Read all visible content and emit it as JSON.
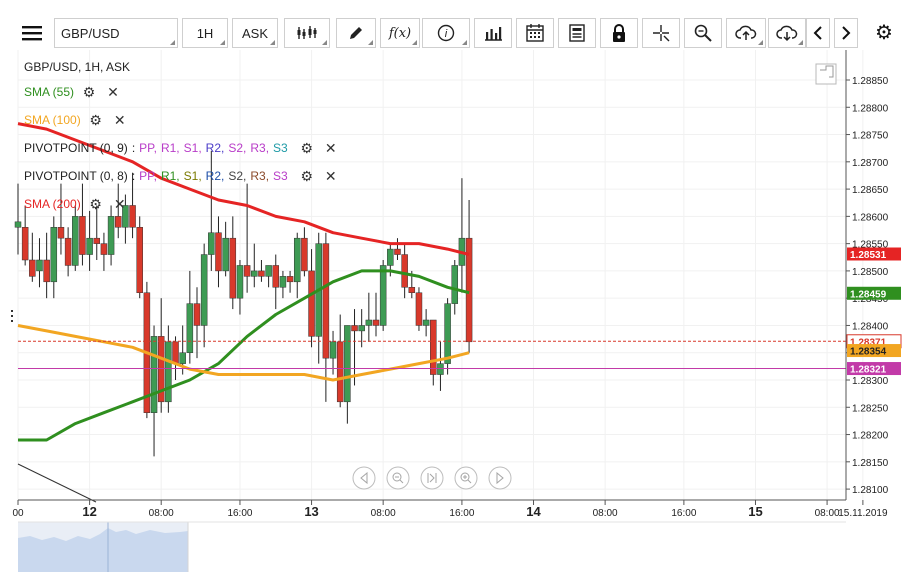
{
  "toolbar": {
    "symbol": "GBP/USD",
    "timeframe": "1H",
    "price_type": "ASK",
    "fx_label": "f(x)"
  },
  "legend": {
    "title": "GBP/USD, 1H, ASK",
    "sma55": "SMA (55)",
    "sma100": "SMA (100)",
    "sma200": "SMA (200)",
    "pivot1_name": "PIVOTPOINT (0, 9)",
    "pivot2_name": "PIVOTPOINT (0, 8)",
    "pivot_prefix": ":",
    "pivot_items": [
      "PP,",
      "R1,",
      "S1,",
      "R2,",
      "S2,",
      "R3,",
      "S3"
    ]
  },
  "colors": {
    "bull": "#3e9b54",
    "bear": "#d8392b",
    "sma55": "#2f8f1f",
    "sma100": "#f2a622",
    "sma200": "#e52424",
    "current": "#d8392b",
    "pivot_line": "#c23aa8",
    "pivot1": [
      "#b83cc8",
      "#b83cc8",
      "#b83cc8",
      "#4b3cc8",
      "#b83cc8",
      "#b83cc8",
      "#1e9aa6"
    ],
    "pivot2": [
      "#b83cc8",
      "#2f8f1f",
      "#7a7a00",
      "#1e4fa8",
      "#444444",
      "#8a4a2a",
      "#b83cc8"
    ]
  },
  "chart_data": {
    "type": "candlestick",
    "symbol": "GBP/USD",
    "timeframe": "1H",
    "y_range": [
      1.2808,
      1.28905
    ],
    "y_ticks": [
      1.281,
      1.2815,
      1.282,
      1.2825,
      1.283,
      1.2835,
      1.284,
      1.2845,
      1.285,
      1.2855,
      1.286,
      1.2865,
      1.287,
      1.2875,
      1.288,
      1.2885
    ],
    "x_ticks": [
      {
        "t": 0,
        "label": "00",
        "major": false
      },
      {
        "t": 10,
        "label": "12",
        "major": true
      },
      {
        "t": 20,
        "label": "08:00",
        "major": false
      },
      {
        "t": 31,
        "label": "16:00",
        "major": false
      },
      {
        "t": 41,
        "label": "13",
        "major": true
      },
      {
        "t": 51,
        "label": "08:00",
        "major": false
      },
      {
        "t": 62,
        "label": "16:00",
        "major": false
      },
      {
        "t": 72,
        "label": "14",
        "major": true
      },
      {
        "t": 82,
        "label": "08:00",
        "major": false
      },
      {
        "t": 93,
        "label": "16:00",
        "major": false
      },
      {
        "t": 103,
        "label": "15",
        "major": true
      },
      {
        "t": 113,
        "label": "08:00",
        "major": false
      },
      {
        "t": 118,
        "label": "15.11.2019",
        "major": false
      }
    ],
    "candles": [
      [
        0,
        1.2858,
        1.2866,
        1.2853,
        1.2859
      ],
      [
        1,
        1.2858,
        1.2862,
        1.2851,
        1.2852
      ],
      [
        2,
        1.2852,
        1.2857,
        1.2848,
        1.2849
      ],
      [
        3,
        1.285,
        1.2856,
        1.2847,
        1.2852
      ],
      [
        4,
        1.2852,
        1.2857,
        1.2845,
        1.2848
      ],
      [
        5,
        1.2848,
        1.286,
        1.2845,
        1.2858
      ],
      [
        6,
        1.2858,
        1.2866,
        1.2853,
        1.2856
      ],
      [
        7,
        1.2856,
        1.2858,
        1.2849,
        1.2851
      ],
      [
        8,
        1.2851,
        1.2862,
        1.285,
        1.286
      ],
      [
        9,
        1.286,
        1.2866,
        1.2851,
        1.2853
      ],
      [
        10,
        1.2853,
        1.2861,
        1.285,
        1.2856
      ],
      [
        11,
        1.2856,
        1.2862,
        1.2852,
        1.2855
      ],
      [
        12,
        1.2855,
        1.2857,
        1.285,
        1.2853
      ],
      [
        13,
        1.2853,
        1.2862,
        1.2851,
        1.286
      ],
      [
        14,
        1.286,
        1.2866,
        1.2856,
        1.2858
      ],
      [
        15,
        1.2858,
        1.2864,
        1.2855,
        1.2862
      ],
      [
        16,
        1.2862,
        1.2868,
        1.2856,
        1.2858
      ],
      [
        17,
        1.2858,
        1.286,
        1.2845,
        1.2846
      ],
      [
        18,
        1.2846,
        1.2848,
        1.2823,
        1.2824
      ],
      [
        19,
        1.2824,
        1.284,
        1.2816,
        1.2838
      ],
      [
        20,
        1.2838,
        1.2845,
        1.2824,
        1.2826
      ],
      [
        21,
        1.2826,
        1.284,
        1.2824,
        1.2837
      ],
      [
        22,
        1.2837,
        1.2838,
        1.283,
        1.2833
      ],
      [
        23,
        1.2833,
        1.284,
        1.2831,
        1.2835
      ],
      [
        24,
        1.2835,
        1.285,
        1.2833,
        1.2844
      ],
      [
        25,
        1.2844,
        1.2847,
        1.2834,
        1.284
      ],
      [
        26,
        1.284,
        1.2855,
        1.2836,
        1.2853
      ],
      [
        27,
        1.2853,
        1.2872,
        1.285,
        1.2857
      ],
      [
        28,
        1.2857,
        1.286,
        1.2847,
        1.285
      ],
      [
        29,
        1.285,
        1.2859,
        1.2849,
        1.2856
      ],
      [
        30,
        1.2856,
        1.286,
        1.2843,
        1.2845
      ],
      [
        31,
        1.2845,
        1.2852,
        1.2842,
        1.2851
      ],
      [
        32,
        1.2851,
        1.2866,
        1.2846,
        1.2849
      ],
      [
        33,
        1.2849,
        1.2855,
        1.2847,
        1.285
      ],
      [
        34,
        1.285,
        1.2852,
        1.2848,
        1.2849
      ],
      [
        35,
        1.2849,
        1.2851,
        1.2847,
        1.2851
      ],
      [
        36,
        1.2851,
        1.2853,
        1.2843,
        1.2847
      ],
      [
        37,
        1.2847,
        1.285,
        1.2845,
        1.2849
      ],
      [
        38,
        1.2849,
        1.285,
        1.2846,
        1.2848
      ],
      [
        39,
        1.2848,
        1.2857,
        1.2845,
        1.2856
      ],
      [
        40,
        1.2856,
        1.2858,
        1.2849,
        1.285
      ],
      [
        41,
        1.285,
        1.2854,
        1.2836,
        1.2838
      ],
      [
        42,
        1.2838,
        1.2857,
        1.2833,
        1.2855
      ],
      [
        43,
        1.2855,
        1.2857,
        1.2826,
        1.2834
      ],
      [
        44,
        1.2834,
        1.2839,
        1.2831,
        1.2837
      ],
      [
        45,
        1.2837,
        1.2842,
        1.2825,
        1.2826
      ],
      [
        46,
        1.2826,
        1.284,
        1.2822,
        1.284
      ],
      [
        47,
        1.284,
        1.2843,
        1.2829,
        1.2839
      ],
      [
        48,
        1.2839,
        1.2843,
        1.2836,
        1.284
      ],
      [
        49,
        1.284,
        1.2846,
        1.2837,
        1.2841
      ],
      [
        50,
        1.2841,
        1.2846,
        1.2838,
        1.284
      ],
      [
        51,
        1.284,
        1.2852,
        1.2839,
        1.2851
      ],
      [
        52,
        1.2851,
        1.2855,
        1.2849,
        1.2854
      ],
      [
        53,
        1.2854,
        1.2856,
        1.2852,
        1.2853
      ],
      [
        54,
        1.2853,
        1.2855,
        1.2845,
        1.2847
      ],
      [
        55,
        1.2847,
        1.285,
        1.2845,
        1.2846
      ],
      [
        56,
        1.2846,
        1.2847,
        1.2839,
        1.284
      ],
      [
        57,
        1.284,
        1.2843,
        1.2838,
        1.2841
      ],
      [
        58,
        1.2841,
        1.2841,
        1.2829,
        1.2831
      ],
      [
        59,
        1.2831,
        1.2837,
        1.2828,
        1.2833
      ],
      [
        60,
        1.2833,
        1.2845,
        1.2831,
        1.2844
      ],
      [
        61,
        1.2844,
        1.2852,
        1.2842,
        1.2851
      ],
      [
        62,
        1.2851,
        1.2867,
        1.2846,
        1.2856
      ],
      [
        63,
        1.2856,
        1.2863,
        1.2835,
        1.2837
      ]
    ],
    "series": [
      {
        "name": "SMA (55)",
        "values": [
          [
            0,
            1.2819
          ],
          [
            4,
            1.2819
          ],
          [
            8,
            1.2822
          ],
          [
            12,
            1.2824
          ],
          [
            16,
            1.2826
          ],
          [
            20,
            1.2828
          ],
          [
            24,
            1.283
          ],
          [
            28,
            1.2833
          ],
          [
            32,
            1.2838
          ],
          [
            36,
            1.2842
          ],
          [
            40,
            1.2845
          ],
          [
            44,
            1.2848
          ],
          [
            48,
            1.285
          ],
          [
            52,
            1.285
          ],
          [
            56,
            1.2849
          ],
          [
            60,
            1.2847
          ],
          [
            63,
            1.2846
          ]
        ]
      },
      {
        "name": "SMA (100)",
        "values": [
          [
            0,
            1.284
          ],
          [
            4,
            1.2839
          ],
          [
            8,
            1.2838
          ],
          [
            12,
            1.2837
          ],
          [
            16,
            1.2836
          ],
          [
            20,
            1.2834
          ],
          [
            24,
            1.2832
          ],
          [
            28,
            1.2831
          ],
          [
            32,
            1.2831
          ],
          [
            36,
            1.2831
          ],
          [
            40,
            1.2831
          ],
          [
            44,
            1.283
          ],
          [
            48,
            1.2831
          ],
          [
            52,
            1.2832
          ],
          [
            56,
            1.2833
          ],
          [
            60,
            1.2834
          ],
          [
            63,
            1.2835
          ]
        ]
      },
      {
        "name": "SMA (200)",
        "values": [
          [
            0,
            1.2877
          ],
          [
            4,
            1.2876
          ],
          [
            8,
            1.2874
          ],
          [
            12,
            1.2872
          ],
          [
            16,
            1.287
          ],
          [
            20,
            1.2867
          ],
          [
            24,
            1.2865
          ],
          [
            28,
            1.2863
          ],
          [
            32,
            1.2862
          ],
          [
            36,
            1.286
          ],
          [
            40,
            1.2859
          ],
          [
            44,
            1.2857
          ],
          [
            48,
            1.2856
          ],
          [
            52,
            1.2855
          ],
          [
            56,
            1.2855
          ],
          [
            60,
            1.2854
          ],
          [
            63,
            1.2853
          ]
        ]
      }
    ],
    "price_labels": [
      {
        "value": 1.28531,
        "text": "1.28531",
        "series": "SMA (200)"
      },
      {
        "value": 1.28459,
        "text": "1.28459",
        "series": "SMA (55)"
      },
      {
        "value": 1.28371,
        "text": "1.28371",
        "series": "current"
      },
      {
        "value": 1.28354,
        "text": "1.28354",
        "series": "SMA (100)"
      },
      {
        "value": 1.28321,
        "text": "1.28321",
        "series": "pivot"
      }
    ],
    "pivot_level": 1.28321,
    "current_price": 1.28371
  }
}
